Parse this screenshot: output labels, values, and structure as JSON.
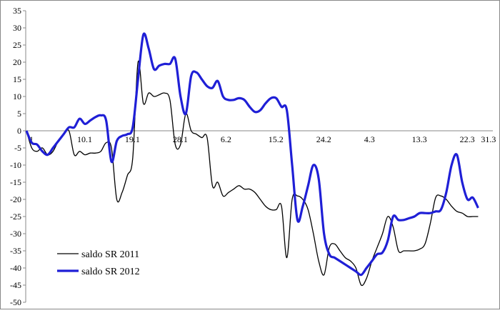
{
  "chart_data": {
    "type": "line",
    "categories": [
      "1",
      null,
      null,
      null,
      null,
      null,
      null,
      null,
      null,
      "10.1",
      null,
      null,
      null,
      null,
      null,
      null,
      null,
      null,
      "19.1",
      null,
      null,
      null,
      null,
      null,
      null,
      null,
      null,
      "28.1",
      null,
      null,
      null,
      null,
      null,
      null,
      null,
      null,
      "6.2",
      null,
      null,
      null,
      null,
      null,
      null,
      null,
      null,
      "15.2",
      null,
      null,
      null,
      null,
      null,
      null,
      null,
      null,
      "24.2",
      null,
      null,
      null,
      null,
      null,
      null,
      null,
      null,
      "4.3",
      null,
      null,
      null,
      null,
      null,
      null,
      null,
      null,
      "13.3",
      null,
      null,
      null,
      null,
      null,
      null,
      null,
      null,
      "22.3",
      null,
      null,
      null,
      "31.3"
    ],
    "series": [
      {
        "name": "saldo SR 2011",
        "color": "#000000",
        "width": 1.3,
        "values": [
          0,
          -5,
          -6,
          -5,
          -7,
          -6,
          -3,
          -1,
          0,
          -7,
          -6,
          -7,
          -6.5,
          -6.5,
          -6,
          -3.5,
          -5,
          -20,
          -18,
          -13,
          -8,
          20,
          8,
          11,
          10,
          10.5,
          11,
          9,
          -4,
          -4,
          5,
          0,
          -1,
          -2,
          -2,
          -16,
          -15,
          -19,
          -18,
          -17,
          -16,
          -17,
          -17,
          -18,
          -20,
          -22,
          -23,
          -23,
          -22,
          -37,
          -20,
          -19,
          -20,
          -23,
          -30,
          -38,
          -42,
          -34,
          -33,
          -35,
          -37,
          -38,
          -40,
          -45,
          -43,
          -38,
          -34,
          -30,
          -25,
          -28,
          -35,
          -35,
          -35,
          -35,
          -34.5,
          -33,
          -27,
          -19.5,
          -19,
          -20,
          -22,
          -23.5,
          -24,
          -25,
          -25,
          -25
        ]
      },
      {
        "name": "saldo SR 2012",
        "color": "#1f1fd6",
        "width": 3.2,
        "values": [
          0,
          -3.5,
          -4,
          -6,
          -7,
          -5,
          -3,
          -1,
          1,
          1,
          3.5,
          2,
          3,
          4,
          4.5,
          3,
          -9,
          -3,
          -1.5,
          -1,
          1,
          15,
          28,
          24,
          18,
          19,
          19.5,
          19.5,
          21,
          10,
          5,
          16,
          17,
          15,
          13,
          12.5,
          14.5,
          10,
          9,
          9,
          9.5,
          9,
          7,
          5.5,
          6,
          8,
          9.5,
          9.5,
          7,
          6,
          -10,
          -26,
          -22,
          -16,
          -10,
          -14,
          -30,
          -36,
          -37,
          -38,
          -39,
          -40,
          -41,
          -42,
          -40,
          -38,
          -36,
          -35.5,
          -32,
          -25,
          -26,
          -26,
          -25.5,
          -25,
          -24,
          -24,
          -24,
          -23.5,
          -23,
          -18,
          -10,
          -7,
          -15,
          -20,
          -19.5,
          -22.5
        ]
      }
    ],
    "ylim": [
      -50,
      35
    ],
    "yticks": [
      -50,
      -45,
      -40,
      -35,
      -30,
      -25,
      -20,
      -15,
      -10,
      -5,
      0,
      5,
      10,
      15,
      20,
      25,
      30,
      35
    ],
    "legend": "lower-left",
    "grid": false
  }
}
